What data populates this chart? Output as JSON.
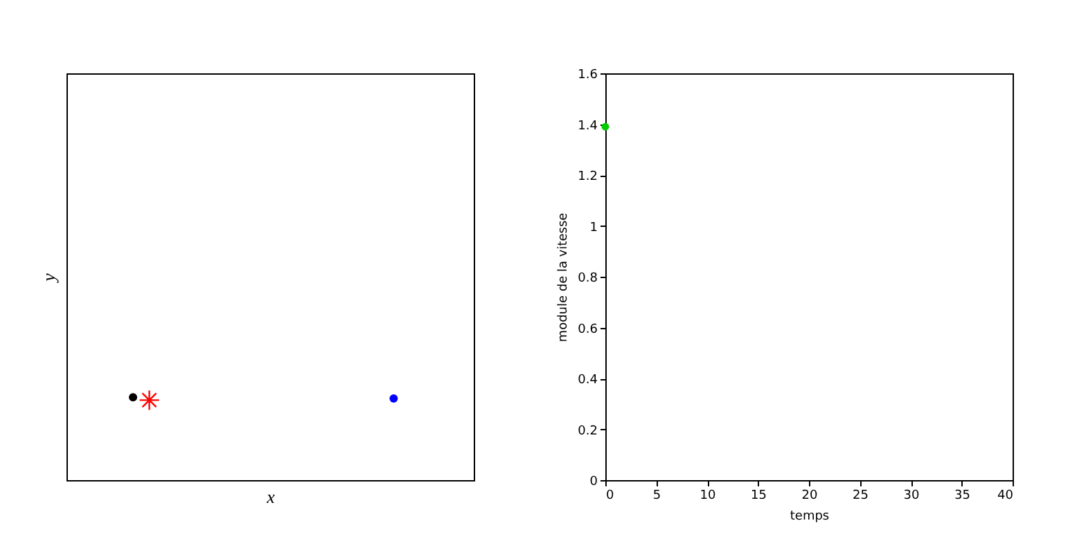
{
  "chart_data": [
    {
      "type": "other",
      "xlabel": "x",
      "ylabel": "y"
    },
    {
      "type": "scatter",
      "xlabel": "temps",
      "ylabel": "module de la vitesse",
      "xlim": [
        0,
        40
      ],
      "xticks": [
        0,
        5,
        10,
        15,
        20,
        25,
        30,
        35,
        40
      ],
      "ylim": [
        0,
        1.6
      ],
      "yticks": [
        0,
        0.2,
        0.4,
        0.6,
        0.8,
        1,
        1.2,
        1.4,
        1.6
      ],
      "series": [
        {
          "color": "#00cc00",
          "marker": "circle",
          "x": [
            0
          ],
          "values": [
            1.39
          ]
        }
      ]
    }
  ]
}
